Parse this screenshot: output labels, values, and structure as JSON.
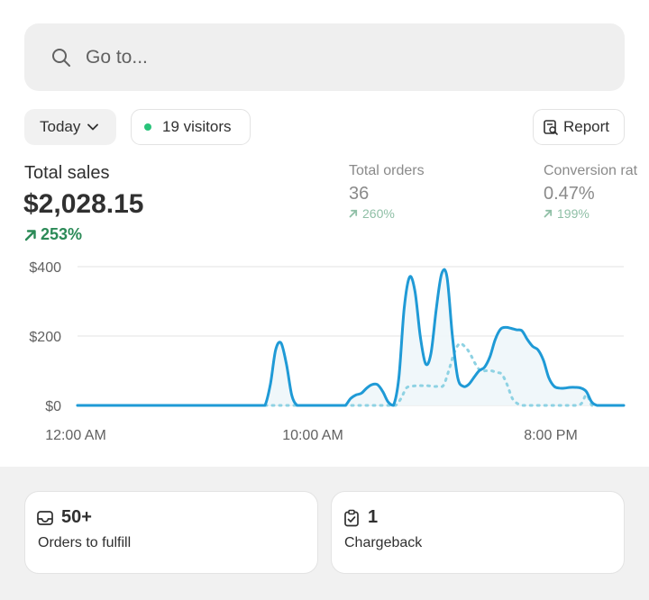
{
  "search": {
    "placeholder": "Go to...",
    "icon": "search-icon"
  },
  "toolbar": {
    "date_label": "Today",
    "visitors_label": "19 visitors",
    "visitors_dot_color": "#29c37a",
    "report_label": "Report"
  },
  "metrics": {
    "total_sales": {
      "label": "Total sales",
      "value": "$2,028.15",
      "change": "253%",
      "color": "#2b8a57"
    },
    "total_orders": {
      "label": "Total orders",
      "value": "36",
      "change": "260%"
    },
    "conversion": {
      "label": "Conversion rat",
      "value": "0.47%",
      "change": "199%"
    }
  },
  "chart_data": {
    "type": "line",
    "y_ticks": [
      "$400",
      "$200",
      "$0"
    ],
    "x_ticks": [
      "12:00 AM",
      "10:00 AM",
      "8:00 PM"
    ],
    "ylim": [
      0,
      400
    ],
    "grid": true,
    "series": [
      {
        "color": "#1f9ad6",
        "style": "solid",
        "values": [
          0,
          0,
          0,
          0,
          0,
          0,
          0,
          0,
          0,
          0,
          0,
          0,
          0,
          0,
          0,
          0,
          0,
          0,
          0,
          0,
          0,
          0,
          0,
          0,
          0,
          0,
          0,
          0,
          0,
          0,
          0,
          0,
          0,
          0,
          0,
          0,
          60,
          160,
          180,
          120,
          30,
          0,
          0,
          0,
          0,
          0,
          0,
          0,
          0,
          0,
          0,
          20,
          30,
          35,
          50,
          60,
          60,
          40,
          10,
          0,
          80,
          280,
          370,
          330,
          200,
          120,
          150,
          280,
          380,
          370,
          200,
          80,
          55,
          60,
          80,
          100,
          110,
          140,
          190,
          220,
          225,
          222,
          218,
          215,
          190,
          170,
          160,
          130,
          80,
          55,
          50,
          50,
          52,
          52,
          50,
          40,
          10,
          0,
          0,
          0,
          0,
          0,
          0
        ]
      },
      {
        "color": "#8ed2e3",
        "style": "dotted",
        "values": [
          0,
          0,
          0,
          0,
          0,
          0,
          0,
          0,
          0,
          0,
          0,
          0,
          0,
          0,
          0,
          0,
          0,
          0,
          0,
          0,
          0,
          0,
          0,
          0,
          0,
          0,
          0,
          0,
          0,
          0,
          0,
          0,
          0,
          0,
          0,
          0,
          0,
          0,
          0,
          0,
          0,
          0,
          0,
          0,
          0,
          0,
          0,
          0,
          0,
          0,
          0,
          0,
          0,
          0,
          0,
          0,
          0,
          0,
          0,
          0,
          0,
          20,
          50,
          55,
          57,
          57,
          57,
          55,
          55,
          58,
          100,
          150,
          178,
          170,
          150,
          120,
          100,
          100,
          100,
          95,
          90,
          60,
          20,
          5,
          0,
          0,
          0,
          0,
          0,
          0,
          0,
          0,
          0,
          0,
          0,
          5,
          30,
          0,
          0,
          0,
          0,
          0,
          0,
          0
        ]
      }
    ]
  },
  "cards": [
    {
      "value": "50+",
      "label": "Orders to fulfill",
      "icon": "inbox-icon"
    },
    {
      "value": "1",
      "label": "Chargeback",
      "icon": "clipboard-check-icon"
    }
  ]
}
